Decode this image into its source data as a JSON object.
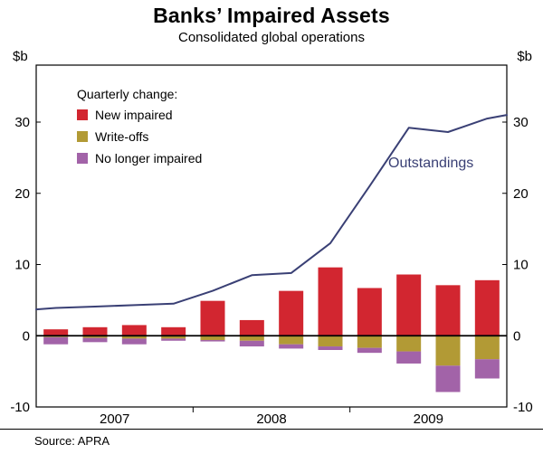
{
  "page": {
    "title": "Banks’ Impaired Assets",
    "subtitle": "Consolidated global operations",
    "source": "Source: APRA"
  },
  "chart_data": {
    "type": "bar",
    "combo": "stacked quarterly-change bars with outstandings line",
    "title": "Banks’ Impaired Assets",
    "subtitle": "Consolidated global operations",
    "unit_left": "$b",
    "unit_right": "$b",
    "legend_title": "Quarterly change:",
    "categories": [
      "2007 Q1",
      "2007 Q2",
      "2007 Q3",
      "2007 Q4",
      "2008 Q1",
      "2008 Q2",
      "2008 Q3",
      "2008 Q4",
      "2009 Q1",
      "2009 Q2",
      "2009 Q3",
      "2009 Q4"
    ],
    "bar_series": [
      {
        "name": "New impaired",
        "color": "#d22630",
        "values": [
          0.9,
          1.2,
          1.5,
          1.2,
          4.9,
          2.2,
          6.3,
          9.6,
          6.7,
          8.6,
          7.1,
          7.8
        ]
      },
      {
        "name": "Write-offs",
        "color": "#b29a35",
        "values": [
          -0.2,
          -0.3,
          -0.4,
          -0.4,
          -0.6,
          -0.7,
          -1.2,
          -1.5,
          -1.7,
          -2.2,
          -4.2,
          -3.3
        ]
      },
      {
        "name": "No longer impaired",
        "color": "#a263a8",
        "values": [
          -1.0,
          -0.6,
          -0.8,
          -0.3,
          -0.2,
          -0.8,
          -0.6,
          -0.5,
          -0.7,
          -1.7,
          -3.7,
          -2.7
        ]
      }
    ],
    "line": {
      "name": "Outstandings",
      "color": "#3a4075",
      "edge_start": 3.7,
      "edge_end": 31.0,
      "values": [
        3.9,
        4.1,
        4.3,
        4.5,
        6.3,
        8.5,
        8.8,
        13.0,
        21.0,
        29.2,
        28.6,
        30.5
      ]
    },
    "axes": {
      "ylim": [
        -10,
        38
      ],
      "y_ticks": [
        -10,
        0,
        10,
        20,
        30
      ],
      "x_year_labels": [
        "2007",
        "2008",
        "2009"
      ],
      "grid": false,
      "zero_line": true,
      "frame": true,
      "legend_position": "top-left inside plot"
    }
  }
}
